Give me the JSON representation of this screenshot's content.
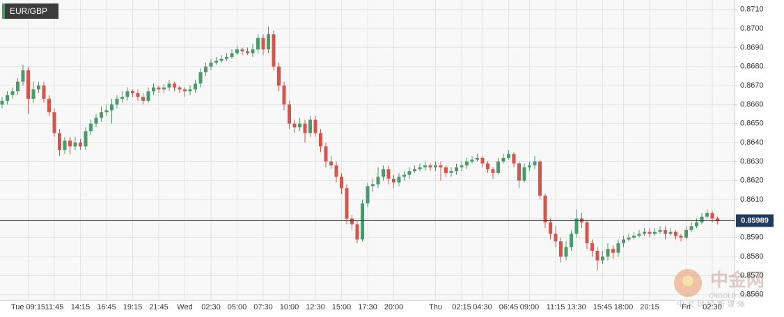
{
  "chart_data": {
    "type": "candlestick",
    "title": "EUR/GBP",
    "up_color": "#4a9a6a",
    "down_color": "#d5544c",
    "grid": true,
    "ylim": [
      0.8557,
      0.8715
    ],
    "yticks": [
      {
        "value": 0.856,
        "label": "0.8560"
      },
      {
        "value": 0.857,
        "label": "0.8570"
      },
      {
        "value": 0.858,
        "label": "0.8580"
      },
      {
        "value": 0.859,
        "label": "0.8590"
      },
      {
        "value": 0.86,
        "label": "0.8600"
      },
      {
        "value": 0.861,
        "label": "0.8610"
      },
      {
        "value": 0.862,
        "label": "0.8620"
      },
      {
        "value": 0.863,
        "label": "0.8630"
      },
      {
        "value": 0.864,
        "label": "0.8640"
      },
      {
        "value": 0.865,
        "label": "0.8650"
      },
      {
        "value": 0.866,
        "label": "0.8660"
      },
      {
        "value": 0.867,
        "label": "0.8670"
      },
      {
        "value": 0.868,
        "label": "0.8680"
      },
      {
        "value": 0.869,
        "label": "0.8690"
      },
      {
        "value": 0.87,
        "label": "0.8700"
      },
      {
        "value": 0.871,
        "label": "0.8710"
      }
    ],
    "last_price": 0.85989,
    "last_price_color": "#1f3a5c",
    "watermark": {
      "name": "中金网",
      "site": "CNGOLD.COM.CN",
      "tagline": "中 文 财 经 新 媒 体"
    },
    "categories": [
      null,
      null,
      null,
      null,
      null,
      "Tue 09:15",
      null,
      null,
      null,
      null,
      "11:45",
      null,
      null,
      null,
      null,
      "14:15",
      null,
      null,
      null,
      null,
      "16:45",
      null,
      null,
      null,
      null,
      "19:15",
      null,
      null,
      null,
      null,
      "21:45",
      null,
      null,
      null,
      null,
      "Wed",
      null,
      null,
      null,
      null,
      "02:30",
      null,
      null,
      null,
      null,
      "05:00",
      null,
      null,
      null,
      null,
      "07:30",
      null,
      null,
      null,
      null,
      "10:00",
      null,
      null,
      null,
      null,
      "12:30",
      null,
      null,
      null,
      null,
      "15:00",
      null,
      null,
      null,
      null,
      "17:30",
      null,
      null,
      null,
      null,
      "20:00",
      null,
      null,
      null,
      null,
      null,
      null,
      null,
      "Thu",
      null,
      null,
      null,
      null,
      "02:15",
      null,
      null,
      null,
      "04:30",
      null,
      null,
      null,
      null,
      "06:45",
      null,
      null,
      null,
      "09:00",
      null,
      null,
      null,
      null,
      "11:15",
      null,
      null,
      null,
      "13:30",
      null,
      null,
      null,
      null,
      "15:45",
      null,
      null,
      null,
      "18:00",
      null,
      null,
      null,
      null,
      "20:15",
      null,
      null,
      null,
      null,
      null,
      null,
      "Fri",
      null,
      null,
      null,
      null,
      "02:30",
      null
    ],
    "candles": [
      [
        0.866,
        0.8664,
        0.8658,
        0.8662
      ],
      [
        0.8662,
        0.8667,
        0.866,
        0.8665
      ],
      [
        0.8665,
        0.8669,
        0.8663,
        0.8667
      ],
      [
        0.8667,
        0.8674,
        0.8665,
        0.8672
      ],
      [
        0.8672,
        0.8681,
        0.867,
        0.8678
      ],
      [
        0.8678,
        0.868,
        0.8655,
        0.8663
      ],
      [
        0.8663,
        0.8672,
        0.8661,
        0.8668
      ],
      [
        0.8668,
        0.8672,
        0.8666,
        0.867
      ],
      [
        0.867,
        0.8672,
        0.8661,
        0.8663
      ],
      [
        0.8663,
        0.8665,
        0.8654,
        0.8656
      ],
      [
        0.8656,
        0.8658,
        0.8643,
        0.8645
      ],
      [
        0.8645,
        0.8647,
        0.8633,
        0.8636
      ],
      [
        0.8636,
        0.8643,
        0.8634,
        0.8641
      ],
      [
        0.8641,
        0.8643,
        0.8634,
        0.8638
      ],
      [
        0.8638,
        0.8643,
        0.8636,
        0.864
      ],
      [
        0.864,
        0.8642,
        0.8636,
        0.8638
      ],
      [
        0.8638,
        0.8648,
        0.8636,
        0.8646
      ],
      [
        0.8646,
        0.8652,
        0.8644,
        0.865
      ],
      [
        0.865,
        0.8655,
        0.8648,
        0.8653
      ],
      [
        0.8653,
        0.8659,
        0.8651,
        0.8656
      ],
      [
        0.8656,
        0.866,
        0.8654,
        0.8657
      ],
      [
        0.8657,
        0.8663,
        0.865,
        0.866
      ],
      [
        0.866,
        0.8665,
        0.8658,
        0.8663
      ],
      [
        0.8663,
        0.8667,
        0.8661,
        0.8664
      ],
      [
        0.8664,
        0.8669,
        0.8662,
        0.8667
      ],
      [
        0.8667,
        0.8668,
        0.8664,
        0.8666
      ],
      [
        0.8666,
        0.8668,
        0.8662,
        0.8664
      ],
      [
        0.8664,
        0.8666,
        0.866,
        0.8662
      ],
      [
        0.8662,
        0.8669,
        0.8661,
        0.8667
      ],
      [
        0.8667,
        0.8671,
        0.8665,
        0.8669
      ],
      [
        0.8669,
        0.867,
        0.8666,
        0.8668
      ],
      [
        0.8668,
        0.8671,
        0.8666,
        0.8669
      ],
      [
        0.8669,
        0.8673,
        0.8667,
        0.8671
      ],
      [
        0.8671,
        0.8672,
        0.8667,
        0.8669
      ],
      [
        0.8669,
        0.867,
        0.8666,
        0.8668
      ],
      [
        0.8668,
        0.8669,
        0.8664,
        0.8667
      ],
      [
        0.8667,
        0.867,
        0.8665,
        0.8668
      ],
      [
        0.8668,
        0.8673,
        0.8666,
        0.8671
      ],
      [
        0.8671,
        0.8679,
        0.8669,
        0.8677
      ],
      [
        0.8677,
        0.8682,
        0.8675,
        0.868
      ],
      [
        0.868,
        0.8684,
        0.8678,
        0.8682
      ],
      [
        0.8682,
        0.8685,
        0.8681,
        0.8683
      ],
      [
        0.8683,
        0.8686,
        0.8682,
        0.8684
      ],
      [
        0.8684,
        0.8687,
        0.8683,
        0.8685
      ],
      [
        0.8685,
        0.8689,
        0.8684,
        0.8687
      ],
      [
        0.8687,
        0.8691,
        0.8686,
        0.8689
      ],
      [
        0.8689,
        0.869,
        0.8686,
        0.8688
      ],
      [
        0.8688,
        0.869,
        0.8686,
        0.8687
      ],
      [
        0.8687,
        0.8692,
        0.8685,
        0.8689
      ],
      [
        0.8689,
        0.8697,
        0.8687,
        0.8695
      ],
      [
        0.8695,
        0.8697,
        0.8686,
        0.8689
      ],
      [
        0.8689,
        0.8701,
        0.8687,
        0.8697
      ],
      [
        0.8697,
        0.8699,
        0.8678,
        0.868
      ],
      [
        0.868,
        0.8682,
        0.8667,
        0.867
      ],
      [
        0.867,
        0.8672,
        0.8657,
        0.866
      ],
      [
        0.866,
        0.8662,
        0.8647,
        0.865
      ],
      [
        0.865,
        0.8652,
        0.8645,
        0.8648
      ],
      [
        0.8648,
        0.8653,
        0.8646,
        0.865
      ],
      [
        0.865,
        0.8652,
        0.864,
        0.8645
      ],
      [
        0.8645,
        0.8654,
        0.8643,
        0.8652
      ],
      [
        0.8652,
        0.8654,
        0.8643,
        0.8645
      ],
      [
        0.8645,
        0.8647,
        0.8635,
        0.8638
      ],
      [
        0.8638,
        0.864,
        0.8627,
        0.863
      ],
      [
        0.863,
        0.8633,
        0.8626,
        0.8628
      ],
      [
        0.8628,
        0.863,
        0.8619,
        0.8622
      ],
      [
        0.8622,
        0.8624,
        0.8613,
        0.8616
      ],
      [
        0.8616,
        0.8618,
        0.8597,
        0.86
      ],
      [
        0.86,
        0.8602,
        0.8594,
        0.8597
      ],
      [
        0.8597,
        0.8599,
        0.8587,
        0.8589
      ],
      [
        0.8589,
        0.861,
        0.8588,
        0.8608
      ],
      [
        0.8608,
        0.8619,
        0.8606,
        0.8617
      ],
      [
        0.8617,
        0.8621,
        0.8614,
        0.8618
      ],
      [
        0.8618,
        0.8627,
        0.8616,
        0.8622
      ],
      [
        0.8622,
        0.8628,
        0.862,
        0.8626
      ],
      [
        0.8626,
        0.8628,
        0.8618,
        0.8621
      ],
      [
        0.8621,
        0.8623,
        0.8616,
        0.8619
      ],
      [
        0.8619,
        0.8624,
        0.8617,
        0.8622
      ],
      [
        0.8622,
        0.8625,
        0.862,
        0.8623
      ],
      [
        0.8623,
        0.8627,
        0.8621,
        0.8625
      ],
      [
        0.8625,
        0.8628,
        0.8624,
        0.8626
      ],
      [
        0.8626,
        0.8629,
        0.8625,
        0.8627
      ],
      [
        0.8627,
        0.863,
        0.8625,
        0.8628
      ],
      [
        0.8628,
        0.8629,
        0.8625,
        0.8627
      ],
      [
        0.8627,
        0.863,
        0.8625,
        0.8628
      ],
      [
        0.8628,
        0.863,
        0.862,
        0.8627
      ],
      [
        0.8627,
        0.8628,
        0.8622,
        0.8624
      ],
      [
        0.8624,
        0.8627,
        0.8622,
        0.8625
      ],
      [
        0.8625,
        0.8629,
        0.8623,
        0.8627
      ],
      [
        0.8627,
        0.863,
        0.8625,
        0.8628
      ],
      [
        0.8628,
        0.8632,
        0.8626,
        0.863
      ],
      [
        0.863,
        0.8633,
        0.8629,
        0.8631
      ],
      [
        0.8631,
        0.8634,
        0.863,
        0.8632
      ],
      [
        0.8632,
        0.8633,
        0.8627,
        0.8629
      ],
      [
        0.8629,
        0.863,
        0.8624,
        0.8626
      ],
      [
        0.8626,
        0.8627,
        0.8621,
        0.8624
      ],
      [
        0.8624,
        0.8632,
        0.8623,
        0.863
      ],
      [
        0.863,
        0.8634,
        0.8629,
        0.8632
      ],
      [
        0.8632,
        0.8636,
        0.8631,
        0.8634
      ],
      [
        0.8634,
        0.8635,
        0.8627,
        0.8629
      ],
      [
        0.8629,
        0.863,
        0.8616,
        0.862
      ],
      [
        0.862,
        0.8629,
        0.8619,
        0.8627
      ],
      [
        0.8627,
        0.863,
        0.8625,
        0.8628
      ],
      [
        0.8628,
        0.8633,
        0.8626,
        0.863
      ],
      [
        0.863,
        0.8631,
        0.861,
        0.8612
      ],
      [
        0.8612,
        0.8613,
        0.8595,
        0.8598
      ],
      [
        0.8598,
        0.86,
        0.8589,
        0.8592
      ],
      [
        0.8592,
        0.8596,
        0.8585,
        0.8588
      ],
      [
        0.8588,
        0.859,
        0.8577,
        0.858
      ],
      [
        0.858,
        0.8588,
        0.8578,
        0.8585
      ],
      [
        0.8585,
        0.8594,
        0.8583,
        0.8592
      ],
      [
        0.8592,
        0.8605,
        0.859,
        0.86
      ],
      [
        0.86,
        0.8603,
        0.8595,
        0.8598
      ],
      [
        0.8598,
        0.8599,
        0.8584,
        0.8587
      ],
      [
        0.8587,
        0.8589,
        0.858,
        0.8583
      ],
      [
        0.8583,
        0.8585,
        0.8573,
        0.8578
      ],
      [
        0.8578,
        0.8583,
        0.8576,
        0.858
      ],
      [
        0.858,
        0.8587,
        0.8578,
        0.8584
      ],
      [
        0.8584,
        0.8586,
        0.8579,
        0.8582
      ],
      [
        0.8582,
        0.8589,
        0.858,
        0.8587
      ],
      [
        0.8587,
        0.8591,
        0.8585,
        0.8589
      ],
      [
        0.8589,
        0.8592,
        0.8588,
        0.859
      ],
      [
        0.859,
        0.8593,
        0.8589,
        0.8591
      ],
      [
        0.8591,
        0.8594,
        0.859,
        0.8592
      ],
      [
        0.8592,
        0.8595,
        0.8591,
        0.8593
      ],
      [
        0.8593,
        0.8595,
        0.859,
        0.8592
      ],
      [
        0.8592,
        0.8595,
        0.8591,
        0.8593
      ],
      [
        0.8593,
        0.8596,
        0.8592,
        0.8594
      ],
      [
        0.8594,
        0.8596,
        0.8589,
        0.8592
      ],
      [
        0.8592,
        0.8595,
        0.8591,
        0.8593
      ],
      [
        0.8593,
        0.8594,
        0.8589,
        0.8591
      ],
      [
        0.8591,
        0.8592,
        0.8588,
        0.859
      ],
      [
        0.859,
        0.8596,
        0.8589,
        0.8594
      ],
      [
        0.8594,
        0.8598,
        0.8593,
        0.8596
      ],
      [
        0.8596,
        0.86,
        0.8595,
        0.8598
      ],
      [
        0.8598,
        0.8603,
        0.8597,
        0.8601
      ],
      [
        0.8601,
        0.8605,
        0.86,
        0.8603
      ],
      [
        0.8603,
        0.8604,
        0.8598,
        0.86
      ],
      [
        0.86,
        0.8601,
        0.8597,
        0.8599
      ]
    ]
  }
}
